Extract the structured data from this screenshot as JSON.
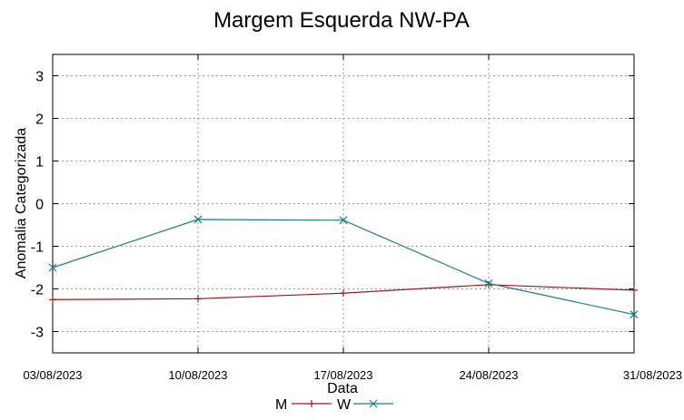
{
  "chart_data": {
    "type": "line",
    "title": "Margem Esquerda NW-PA",
    "xlabel": "Data",
    "ylabel": "Anomalia Categorizada",
    "categories": [
      "03/08/2023",
      "10/08/2023",
      "17/08/2023",
      "24/08/2023",
      "31/08/2023"
    ],
    "ylim": [
      -3.5,
      3.5
    ],
    "yticks": [
      3,
      2,
      1,
      0,
      -1,
      -2,
      -3
    ],
    "ytick_labels": [
      "3",
      "2",
      "1",
      "0",
      "-1",
      "-2",
      "-3"
    ],
    "grid": true,
    "legend_position": "bottom-center",
    "series": [
      {
        "name": "M",
        "color": "#a01818",
        "marker": "plus",
        "values": [
          -2.25,
          -2.23,
          -2.1,
          -1.9,
          -2.03
        ]
      },
      {
        "name": "W",
        "color": "#1a7f7f",
        "marker": "cross",
        "values": [
          -1.5,
          -0.37,
          -0.39,
          -1.87,
          -2.6
        ]
      }
    ]
  }
}
